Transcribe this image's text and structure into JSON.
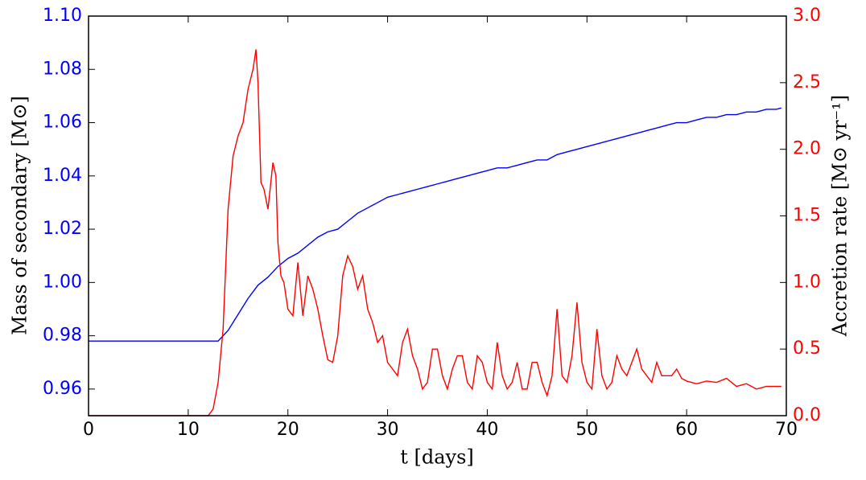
{
  "chart_data": {
    "type": "line",
    "xlabel": "t  [days]",
    "ylabel": "Mass of secondary  [M⊙]",
    "y2label": "Accretion rate  [M⊙ yr⁻¹]",
    "xlim": [
      0,
      70
    ],
    "ylim": [
      0.95,
      1.1
    ],
    "y2lim": [
      0,
      3.0
    ],
    "xticks": [
      0,
      10,
      20,
      30,
      40,
      50,
      60,
      70
    ],
    "yticks": [
      0.96,
      0.98,
      {
        "value": 1.0,
        "label": "1.00"
      },
      1.02,
      1.04,
      1.06,
      1.08,
      {
        "value": 1.1,
        "label": "1.10"
      }
    ],
    "y2ticks": [
      {
        "value": 0,
        "label": "0.0"
      },
      0.5,
      {
        "value": 1,
        "label": "1.0"
      },
      1.5,
      {
        "value": 2,
        "label": "2.0"
      },
      2.5,
      {
        "value": 3,
        "label": "3.0"
      }
    ],
    "ycolor": "#0000ff",
    "y2color": "#ff0000",
    "series": [
      {
        "name": "Mass of secondary",
        "color": "#0000ff",
        "axis": "y",
        "x": [
          0,
          13,
          14,
          15,
          16,
          17,
          18,
          19,
          20,
          21,
          22,
          23,
          24,
          25,
          26,
          27,
          28,
          29,
          30,
          31,
          32,
          33,
          34,
          35,
          36,
          37,
          38,
          39,
          40,
          41,
          42,
          43,
          44,
          45,
          46,
          47,
          48,
          49,
          50,
          51,
          52,
          53,
          54,
          55,
          56,
          57,
          58,
          59,
          60,
          61,
          62,
          63,
          64,
          65,
          66,
          67,
          68,
          69,
          69.5
        ],
        "values": [
          0.978,
          0.978,
          0.982,
          0.988,
          0.994,
          0.999,
          1.002,
          1.006,
          1.009,
          1.011,
          1.014,
          1.017,
          1.019,
          1.02,
          1.023,
          1.026,
          1.028,
          1.03,
          1.032,
          1.033,
          1.034,
          1.035,
          1.036,
          1.037,
          1.038,
          1.039,
          1.04,
          1.041,
          1.042,
          1.043,
          1.043,
          1.044,
          1.045,
          1.046,
          1.046,
          1.048,
          1.049,
          1.05,
          1.051,
          1.052,
          1.053,
          1.054,
          1.055,
          1.056,
          1.057,
          1.058,
          1.059,
          1.06,
          1.06,
          1.061,
          1.062,
          1.062,
          1.063,
          1.063,
          1.064,
          1.064,
          1.065,
          1.065,
          1.0655
        ]
      },
      {
        "name": "Accretion rate",
        "color": "#ff0000",
        "axis": "y2",
        "x": [
          0,
          12,
          12.5,
          13,
          13.5,
          14,
          14.5,
          15,
          15.5,
          16,
          16.5,
          16.8,
          17,
          17.3,
          17.6,
          18,
          18.5,
          18.8,
          19,
          19.3,
          19.6,
          20,
          20.5,
          21,
          21.5,
          22,
          22.5,
          23,
          23.5,
          24,
          24.5,
          25,
          25.5,
          26,
          26.5,
          27,
          27.5,
          28,
          28.5,
          29,
          29.5,
          30,
          30.5,
          31,
          31.5,
          32,
          32.5,
          33,
          33.5,
          34,
          34.5,
          35,
          35.5,
          36,
          36.5,
          37,
          37.5,
          38,
          38.5,
          39,
          39.5,
          40,
          40.5,
          41,
          41.5,
          42,
          42.5,
          43,
          43.5,
          44,
          44.5,
          45,
          45.5,
          46,
          46.5,
          47,
          47.5,
          48,
          48.5,
          49,
          49.5,
          50,
          50.5,
          51,
          51.5,
          52,
          52.5,
          53,
          53.5,
          54,
          54.5,
          55,
          55.5,
          56,
          56.5,
          57,
          57.5,
          58,
          58.5,
          59,
          59.5,
          60,
          61,
          62,
          63,
          64,
          65,
          66,
          67,
          68,
          69,
          69.5
        ],
        "values": [
          0,
          0,
          0.05,
          0.25,
          0.65,
          1.55,
          1.95,
          2.1,
          2.2,
          2.45,
          2.6,
          2.75,
          2.5,
          1.75,
          1.7,
          1.55,
          1.9,
          1.8,
          1.3,
          1.05,
          1.0,
          0.8,
          0.75,
          1.15,
          0.75,
          1.05,
          0.95,
          0.8,
          0.6,
          0.42,
          0.4,
          0.6,
          1.05,
          1.2,
          1.12,
          0.95,
          1.05,
          0.8,
          0.7,
          0.55,
          0.6,
          0.4,
          0.35,
          0.3,
          0.55,
          0.65,
          0.45,
          0.35,
          0.2,
          0.25,
          0.5,
          0.5,
          0.3,
          0.2,
          0.35,
          0.45,
          0.45,
          0.25,
          0.2,
          0.45,
          0.4,
          0.25,
          0.2,
          0.55,
          0.3,
          0.2,
          0.25,
          0.4,
          0.2,
          0.2,
          0.4,
          0.4,
          0.25,
          0.15,
          0.3,
          0.8,
          0.3,
          0.25,
          0.45,
          0.85,
          0.4,
          0.25,
          0.2,
          0.65,
          0.3,
          0.2,
          0.25,
          0.45,
          0.35,
          0.3,
          0.4,
          0.5,
          0.35,
          0.3,
          0.25,
          0.4,
          0.3,
          0.3,
          0.3,
          0.35,
          0.28,
          0.26,
          0.24,
          0.26,
          0.25,
          0.28,
          0.22,
          0.24,
          0.2,
          0.22,
          0.22,
          0.22
        ]
      }
    ]
  }
}
